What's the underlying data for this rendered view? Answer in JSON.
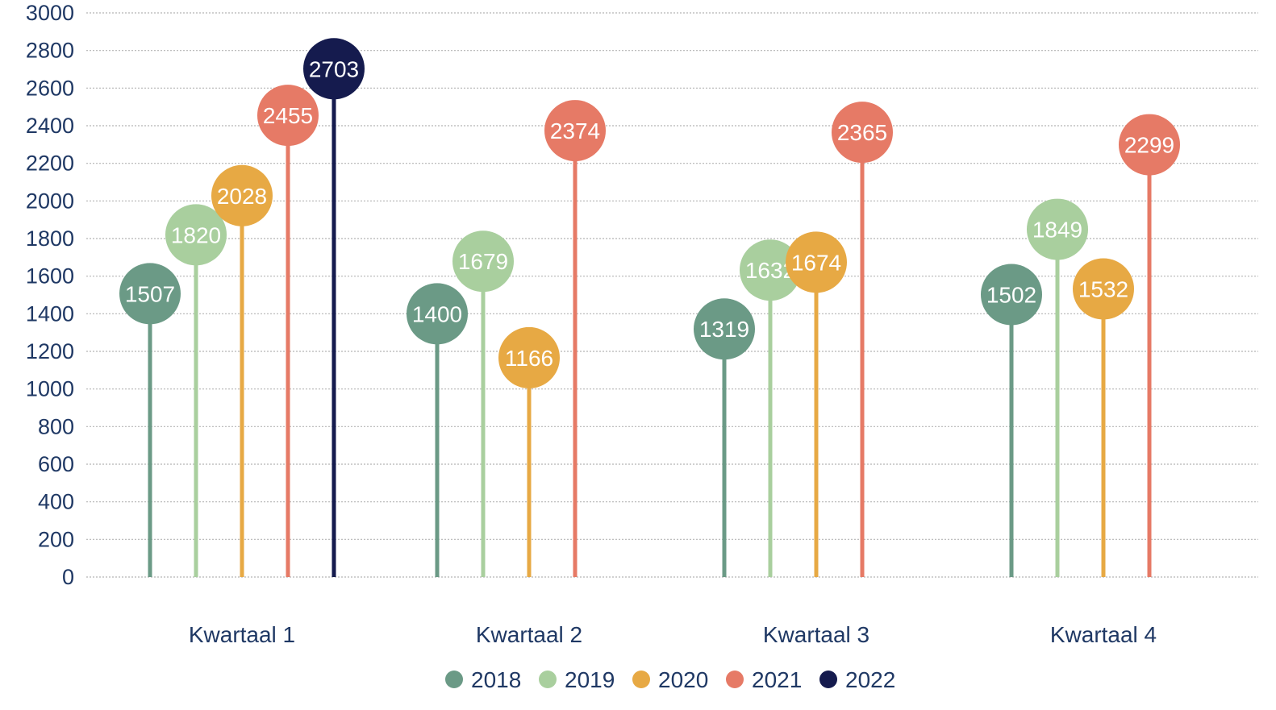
{
  "chart_data": {
    "type": "lollipop",
    "title": "",
    "xlabel": "",
    "ylabel": "",
    "ylim": [
      0,
      3000
    ],
    "ytick_step": 200,
    "yticks": [
      "0",
      "200",
      "400",
      "600",
      "800",
      "1000",
      "1200",
      "1400",
      "1600",
      "1800",
      "2000",
      "2200",
      "2400",
      "2600",
      "2800",
      "3000"
    ],
    "grid": true,
    "legend_position": "bottom",
    "categories": [
      "Kwartaal 1",
      "Kwartaal 2",
      "Kwartaal 3",
      "Kwartaal 4"
    ],
    "series": [
      {
        "name": "2018",
        "color": "#6b9a86",
        "values": [
          1507,
          1400,
          1319,
          1502
        ]
      },
      {
        "name": "2019",
        "color": "#a9cf9e",
        "values": [
          1820,
          1679,
          1632,
          1849
        ]
      },
      {
        "name": "2020",
        "color": "#e7a944",
        "values": [
          2028,
          1166,
          1674,
          1532
        ]
      },
      {
        "name": "2021",
        "color": "#e67a66",
        "values": [
          2455,
          2374,
          2365,
          2299
        ]
      },
      {
        "name": "2022",
        "color": "#151b4e",
        "values": [
          2703,
          null,
          null,
          null
        ]
      }
    ]
  }
}
